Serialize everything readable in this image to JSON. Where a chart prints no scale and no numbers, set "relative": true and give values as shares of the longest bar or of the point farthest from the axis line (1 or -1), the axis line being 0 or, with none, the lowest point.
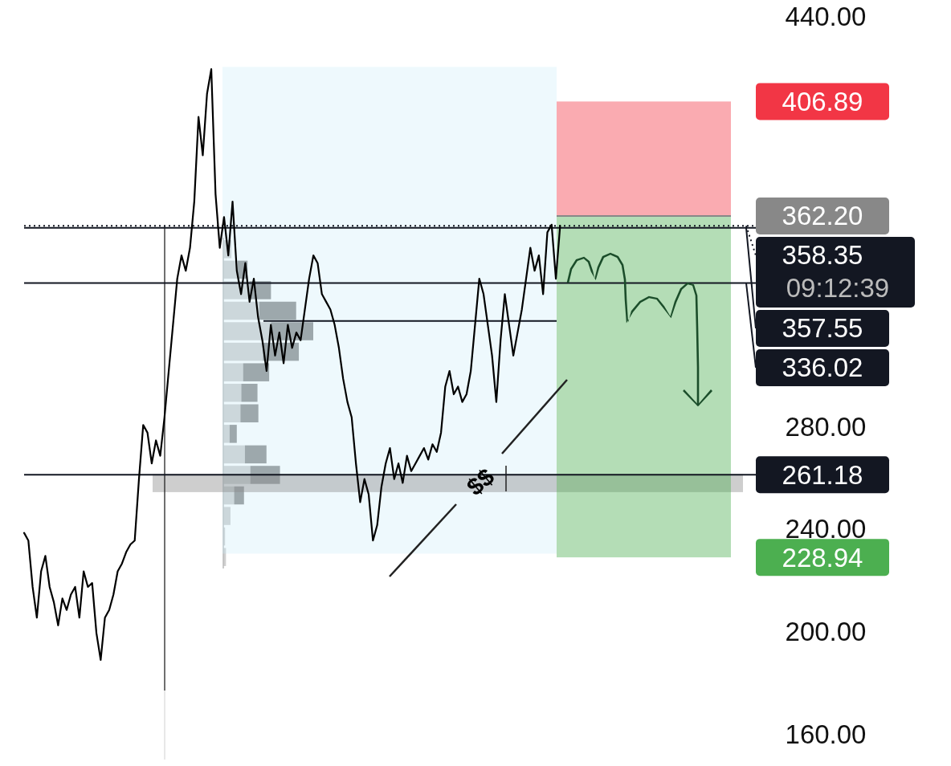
{
  "chart_data": [
    {
      "type": "line",
      "color": "#000000",
      "categories": [
        null,
        null,
        null,
        null,
        null,
        null,
        null,
        null,
        null,
        null,
        null,
        null,
        null,
        null,
        null,
        null,
        null,
        null,
        null,
        null,
        null,
        null,
        null,
        null,
        null,
        null,
        null,
        null,
        null,
        null,
        null,
        null,
        null,
        null,
        null,
        null,
        null,
        null,
        null,
        null,
        null,
        null,
        null,
        null,
        null,
        null,
        null,
        null,
        null,
        null,
        null,
        null,
        null,
        null,
        null,
        null,
        null,
        null,
        null,
        null,
        null,
        null,
        null,
        null,
        null,
        null,
        null,
        null,
        null,
        null,
        null,
        null,
        null,
        null,
        null,
        null,
        null,
        null,
        null,
        null,
        null,
        null,
        null,
        null,
        null,
        null,
        null,
        null,
        null,
        null,
        null,
        null,
        null,
        null,
        null,
        null,
        null,
        null,
        null,
        null,
        null,
        null,
        null,
        null,
        null,
        null,
        null,
        null,
        null,
        null,
        null,
        null,
        null,
        null,
        null,
        null,
        null,
        null,
        null,
        null,
        null,
        null,
        null,
        null,
        null,
        null,
        null,
        null,
        null,
        null,
        null,
        null,
        null,
        null,
        null,
        null,
        null,
        null,
        null,
        null,
        null,
        null,
        null,
        null,
        null,
        null,
        null,
        null,
        null,
        null,
        null,
        null,
        null,
        null,
        null,
        null,
        null,
        null,
        null,
        null,
        null,
        null,
        null,
        null,
        null,
        null,
        null,
        null,
        null,
        null,
        null,
        null,
        null
      ],
      "values": [
        238.5,
        235.5,
        217.4,
        205.4,
        223.5,
        229.5,
        217.4,
        211.4,
        202.4,
        212.9,
        208.4,
        214.4,
        217.4,
        205.4,
        223.5,
        217.4,
        218.9,
        199.4,
        188.9,
        205.4,
        208.4,
        214.4,
        223.5,
        226.5,
        231,
        234,
        235.5,
        259.5,
        280.6,
        277.6,
        265.6,
        274.6,
        268.6,
        283.6,
        301.7,
        319.7,
        337.7,
        346.8,
        340.8,
        349.8,
        367.8,
        400.9,
        385.9,
        409.9,
        419.5,
        370.8,
        349.8,
        361.8,
        346.8,
        367.8,
        340.8,
        331.7,
        343.8,
        328.7,
        337.7,
        322.7,
        313.7,
        301.7,
        319.7,
        307.7,
        316.7,
        304.7,
        319.7,
        310.7,
        316.7,
        313.7,
        325.7,
        337.7,
        346.8,
        343.8,
        331.7,
        328.7,
        325.7,
        319.7,
        310.7,
        298.6,
        289.6,
        283.6,
        265.6,
        250.5,
        259.5,
        253.5,
        235.5,
        241.5,
        256.5,
        265.6,
        271.6,
        259.5,
        265.6,
        258,
        268.6,
        262.6,
        265.6,
        268.6,
        271.6,
        267.1,
        273.1,
        270.1,
        277.6,
        295.6,
        301.7,
        292.6,
        295.6,
        289.6,
        292.6,
        301.7,
        319.7,
        337.7,
        331.7,
        319.7,
        307.7,
        289.6,
        313.7,
        331.7,
        319.7,
        307.7,
        316.7,
        325.7,
        337.7,
        349.8,
        340.8,
        346.8,
        331.7,
        355.8,
        358.8,
        337.7,
        358.4,
        null,
        null,
        null,
        null,
        null,
        null,
        null,
        null,
        null,
        null,
        null,
        null,
        null,
        null,
        null,
        null,
        null,
        null,
        null,
        null,
        null,
        null,
        null,
        null,
        null,
        null,
        null,
        null,
        null,
        null,
        null,
        null,
        null,
        null,
        null,
        null,
        null,
        null,
        null,
        null,
        null,
        null,
        null,
        null,
        null,
        null
      ],
      "ylim": [
        150,
        444
      ],
      "yticks": [
        {
          "value": 440,
          "label": "440.00"
        },
        {
          "value": 280,
          "label": "280.00"
        },
        {
          "value": 240,
          "label": "240.00"
        },
        {
          "value": 200,
          "label": "200.00"
        },
        {
          "value": 160,
          "label": "160.00"
        }
      ],
      "tick_labels": "y",
      "ref_lines": [
        {
          "axis": "y",
          "value": 358.35,
          "label": "358.35",
          "color": "#131722",
          "line_style": "dotted"
        },
        {
          "axis": "y",
          "value": 357.55,
          "label": "357.55",
          "color": "#131722"
        },
        {
          "axis": "y",
          "value": 336.02,
          "label": "336.02",
          "color": "#131722"
        },
        {
          "axis": "y",
          "value": 321.2,
          "color": "#131722"
        },
        {
          "axis": "y",
          "value": 261.18,
          "label": "261.18",
          "color": "#131722"
        },
        {
          "axis": "y",
          "value": 362.2,
          "label": "362.20",
          "color": "#888888"
        }
      ],
      "bands": [
        {
          "axis": "y",
          "from": 230.4,
          "to": 420.4,
          "color": "#c8eaf8"
        },
        {
          "axis": "y",
          "from": 254.4,
          "to": 261.4,
          "color": "#8a8a8a"
        },
        {
          "axis": "y",
          "from": 362.2,
          "to": 406.89,
          "label": "406.89",
          "color": "#f23645"
        },
        {
          "axis": "y",
          "from": 228.94,
          "to": 362.2,
          "label": "228.94",
          "color": "#4caf50"
        }
      ],
      "annotations": [
        "09:12:39",
        "$$"
      ]
    },
    {
      "type": "bar",
      "orientation": "horizontal",
      "stacked": true,
      "relative": true,
      "categories": [
        null,
        null,
        null,
        null,
        null,
        null,
        null,
        null,
        null,
        null,
        null,
        null,
        null,
        null,
        null,
        null
      ],
      "series": [
        {
          "color": "#cfcfcf",
          "values": [
            0.09,
            0.16,
            0.29,
            0.4,
            0.53,
            0.44,
            0.22,
            0.2,
            0.19,
            0.07,
            0.24,
            0.3,
            0.12,
            0.08,
            0.02,
            0.03
          ]
        },
        {
          "color": "#8c8c8c",
          "values": [
            0,
            0.11,
            0.24,
            0.41,
            0.47,
            0.4,
            0.29,
            0.18,
            0.2,
            0.08,
            0.24,
            0.33,
            0.11,
            0,
            0,
            0
          ]
        }
      ]
    }
  ]
}
